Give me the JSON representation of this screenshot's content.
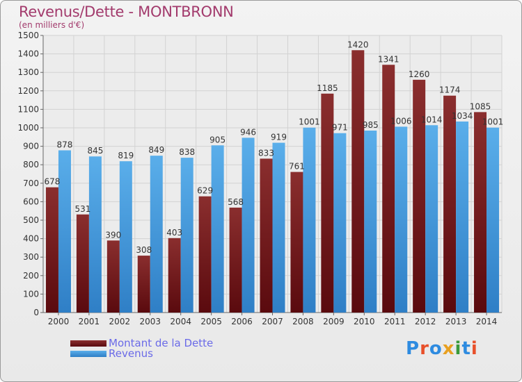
{
  "header": {
    "title": "Revenus/Dette - MONTBRONN",
    "subtitle": "(en milliers d'€)"
  },
  "legend": {
    "dette_label": "Montant de la Dette",
    "revenus_label": "Revenus"
  },
  "logo": {
    "letters": [
      "P",
      "r",
      "o",
      "x",
      "i",
      "t",
      "i"
    ],
    "colors": [
      "#2e8be0",
      "#e8502a",
      "#2e8be0",
      "#e8a020",
      "#3a9a3a",
      "#2e8be0",
      "#e8502a"
    ]
  },
  "colors": {
    "dette": "#6e1a1f",
    "revenus": "#4a9fe0"
  },
  "chart_data": {
    "type": "bar",
    "title": "Revenus/Dette - MONTBRONN",
    "subtitle": "(en milliers d'€)",
    "categories": [
      "2000",
      "2001",
      "2002",
      "2003",
      "2004",
      "2005",
      "2006",
      "2007",
      "2008",
      "2009",
      "2010",
      "2011",
      "2012",
      "2013",
      "2014"
    ],
    "series": [
      {
        "name": "Montant de la Dette",
        "values": [
          678,
          531,
          390,
          308,
          403,
          629,
          568,
          833,
          761,
          1185,
          1420,
          1341,
          1260,
          1174,
          1085
        ]
      },
      {
        "name": "Revenus",
        "values": [
          878,
          845,
          819,
          849,
          838,
          905,
          946,
          919,
          1001,
          971,
          985,
          1006,
          1014,
          1034,
          1001
        ]
      }
    ],
    "ylim": [
      0,
      1500
    ],
    "yticks": [
      0,
      100,
      200,
      300,
      400,
      500,
      600,
      700,
      800,
      900,
      1000,
      1100,
      1200,
      1300,
      1400,
      1500
    ],
    "grid": true,
    "legend_position": "bottom-left"
  }
}
